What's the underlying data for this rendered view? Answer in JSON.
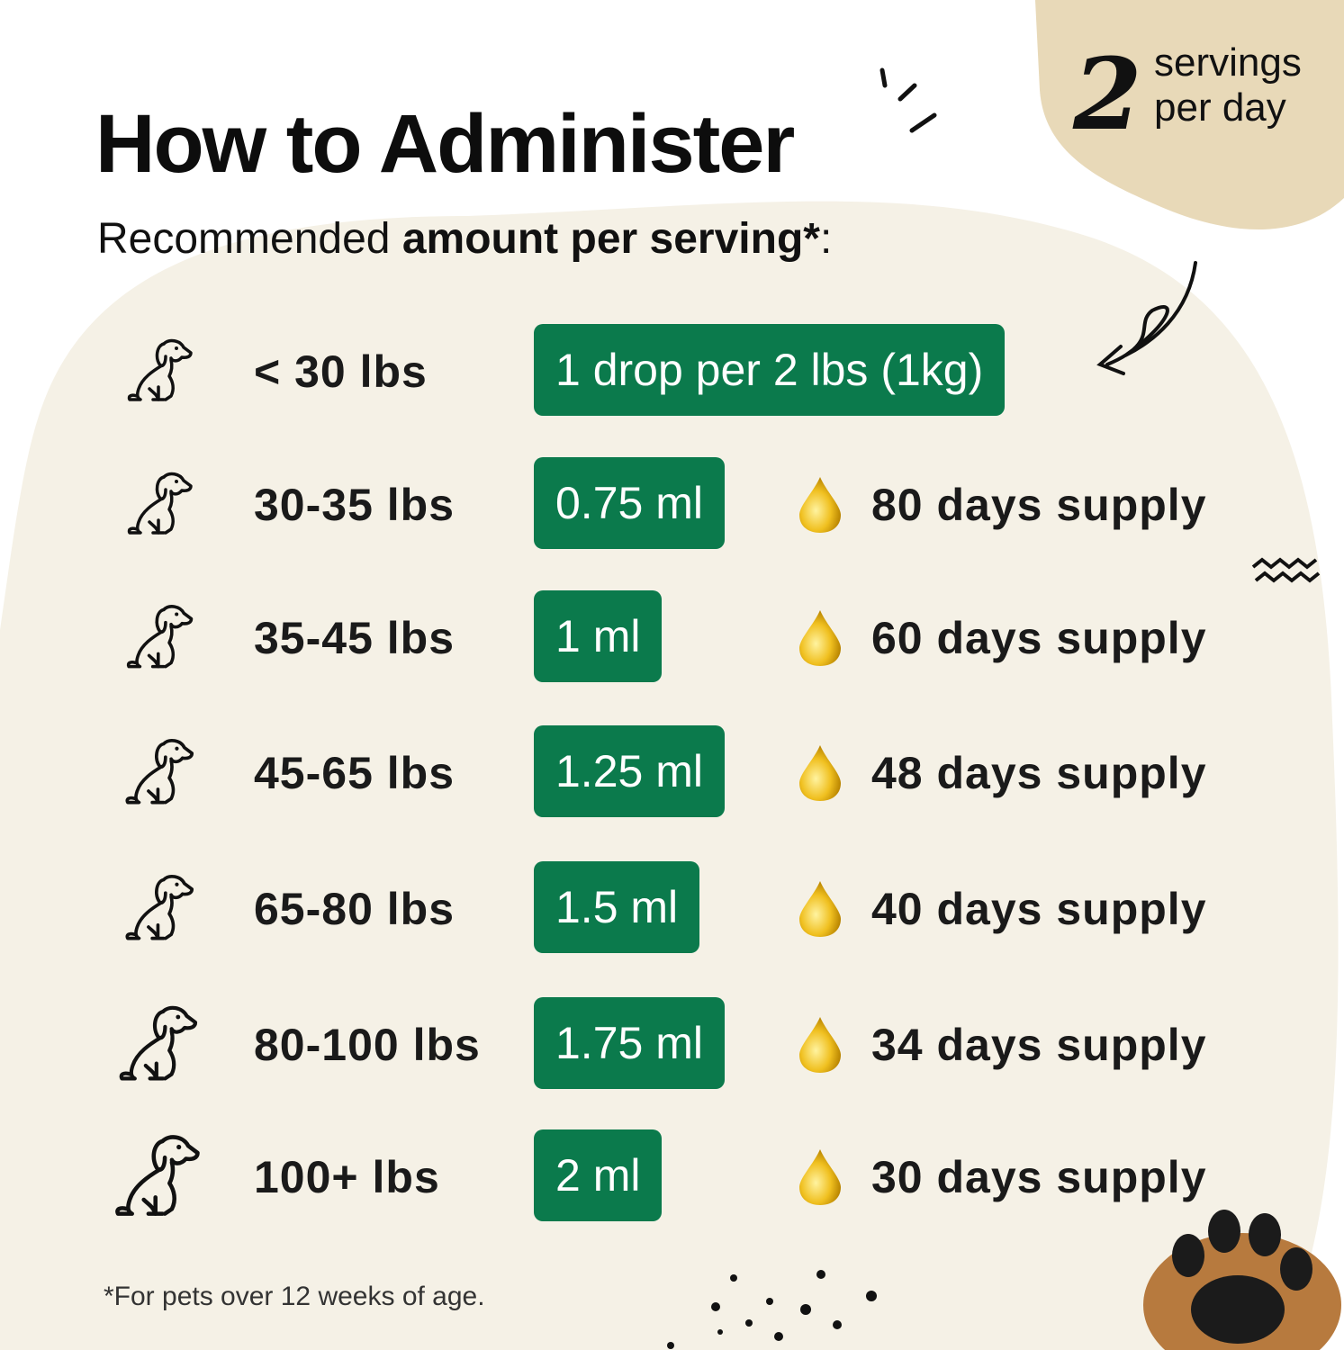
{
  "header": {
    "title": "How to Administer",
    "subtitle_regular": "Recommended ",
    "subtitle_bold": "amount per serving*",
    "subtitle_end": ":"
  },
  "badge": {
    "number": "2",
    "line1": "servings",
    "line2": "per day"
  },
  "colors": {
    "accent_green": "#0b7a4c",
    "blob": "#f5f1e6",
    "badge": "#e8d9b8",
    "drop": "#e8b800"
  },
  "rows": [
    {
      "weight": "< 30 lbs",
      "amount": "1 drop per 2 lbs (1kg)",
      "supply": ""
    },
    {
      "weight": "30-35 lbs",
      "amount": "0.75 ml",
      "supply": "80 days supply"
    },
    {
      "weight": "35-45 lbs",
      "amount": "1 ml",
      "supply": "60 days supply"
    },
    {
      "weight": "45-65 lbs",
      "amount": "1.25 ml",
      "supply": "48 days supply"
    },
    {
      "weight": "65-80 lbs",
      "amount": "1.5 ml",
      "supply": "40 days supply"
    },
    {
      "weight": "80-100 lbs",
      "amount": "1.75 ml",
      "supply": "34 days supply"
    },
    {
      "weight": "100+ lbs",
      "amount": "2 ml",
      "supply": "30 days supply"
    }
  ],
  "footnote": "*For pets over 12 weeks of age."
}
